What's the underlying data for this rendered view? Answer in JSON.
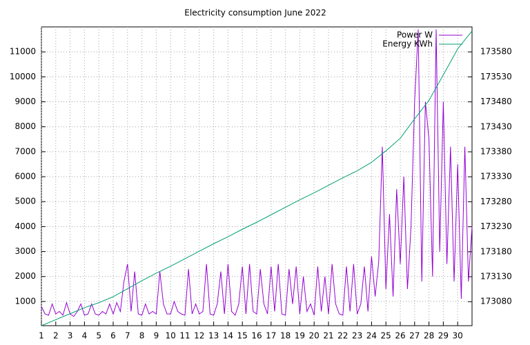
{
  "chart_data": {
    "type": "line",
    "title": "Electricity consumption June 2022",
    "xlim": [
      1,
      31
    ],
    "xticks": [
      1,
      2,
      3,
      4,
      5,
      6,
      7,
      8,
      9,
      10,
      11,
      12,
      13,
      14,
      15,
      16,
      17,
      18,
      19,
      20,
      21,
      22,
      23,
      24,
      25,
      26,
      27,
      28,
      29,
      30
    ],
    "ylim": [
      30,
      12000
    ],
    "yticks": [
      1000,
      2000,
      3000,
      4000,
      5000,
      6000,
      7000,
      8000,
      9000,
      10000,
      11000
    ],
    "y2lim": [
      173032,
      173630
    ],
    "y2ticks": [
      173080,
      173130,
      173180,
      173230,
      173280,
      173330,
      173380,
      173430,
      173480,
      173530,
      173580
    ],
    "grid": true,
    "legend": "top-right",
    "series": [
      {
        "name": "Power W",
        "color": "#9400d3",
        "x": [
          1,
          1.25,
          1.5,
          1.75,
          2,
          2.25,
          2.5,
          2.75,
          3,
          3.25,
          3.5,
          3.75,
          4,
          4.25,
          4.5,
          4.75,
          5,
          5.25,
          5.5,
          5.75,
          6,
          6.25,
          6.5,
          6.75,
          7,
          7.25,
          7.5,
          7.75,
          8,
          8.25,
          8.5,
          8.75,
          9,
          9.25,
          9.5,
          9.75,
          10,
          10.25,
          10.5,
          10.75,
          11,
          11.25,
          11.5,
          11.75,
          12,
          12.25,
          12.5,
          12.75,
          13,
          13.25,
          13.5,
          13.75,
          14,
          14.25,
          14.5,
          14.75,
          15,
          15.25,
          15.5,
          15.75,
          16,
          16.25,
          16.5,
          16.75,
          17,
          17.25,
          17.5,
          17.75,
          18,
          18.25,
          18.5,
          18.75,
          19,
          19.25,
          19.5,
          19.75,
          20,
          20.25,
          20.5,
          20.75,
          21,
          21.25,
          21.5,
          21.75,
          22,
          22.25,
          22.5,
          22.75,
          23,
          23.25,
          23.5,
          23.75,
          24,
          24.25,
          24.5,
          24.75,
          25,
          25.25,
          25.5,
          25.75,
          26,
          26.25,
          26.5,
          26.75,
          27,
          27.25,
          27.5,
          27.75,
          28,
          28.25,
          28.5,
          28.75,
          29,
          29.25,
          29.5,
          29.75,
          30,
          30.25,
          30.5,
          30.75,
          31
        ],
        "values": [
          800,
          500,
          450,
          900,
          500,
          600,
          450,
          950,
          500,
          400,
          600,
          900,
          450,
          500,
          900,
          500,
          450,
          600,
          500,
          900,
          500,
          950,
          600,
          1800,
          2500,
          600,
          2200,
          500,
          450,
          900,
          500,
          600,
          500,
          2200,
          900,
          500,
          500,
          1000,
          600,
          500,
          450,
          2300,
          500,
          900,
          500,
          600,
          2500,
          500,
          450,
          900,
          2200,
          500,
          2500,
          600,
          450,
          900,
          2400,
          500,
          2500,
          600,
          500,
          2300,
          900,
          500,
          2400,
          600,
          2500,
          500,
          450,
          2300,
          900,
          2400,
          500,
          2000,
          600,
          900,
          450,
          2400,
          600,
          2000,
          500,
          2500,
          900,
          500,
          450,
          2400,
          600,
          2500,
          500,
          900,
          2400,
          600,
          2800,
          1200,
          2600,
          7200,
          1500,
          4500,
          1200,
          5500,
          2500,
          6000,
          1500,
          4000,
          9000,
          11900,
          1800,
          9000,
          7500,
          2000,
          11900,
          3000,
          9000,
          2500,
          7200,
          1800,
          6500,
          1100,
          7200,
          1800,
          4000
        ]
      },
      {
        "name": "Energy KWh",
        "color": "#009e73",
        "axis": "y2",
        "x": [
          1,
          2,
          3,
          4,
          5,
          6,
          7,
          8,
          9,
          10,
          11,
          12,
          13,
          14,
          15,
          16,
          17,
          18,
          19,
          20,
          21,
          22,
          23,
          24,
          25,
          26,
          27,
          28,
          29,
          30,
          31
        ],
        "values": [
          173032,
          173044,
          173056,
          173068,
          173078,
          173090,
          173106,
          173122,
          173137,
          173151,
          173166,
          173181,
          173196,
          173210,
          173225,
          173239,
          173254,
          173269,
          173284,
          173298,
          173313,
          173328,
          173342,
          173359,
          173382,
          173407,
          173446,
          173483,
          173534,
          173586,
          173622
        ]
      }
    ]
  }
}
